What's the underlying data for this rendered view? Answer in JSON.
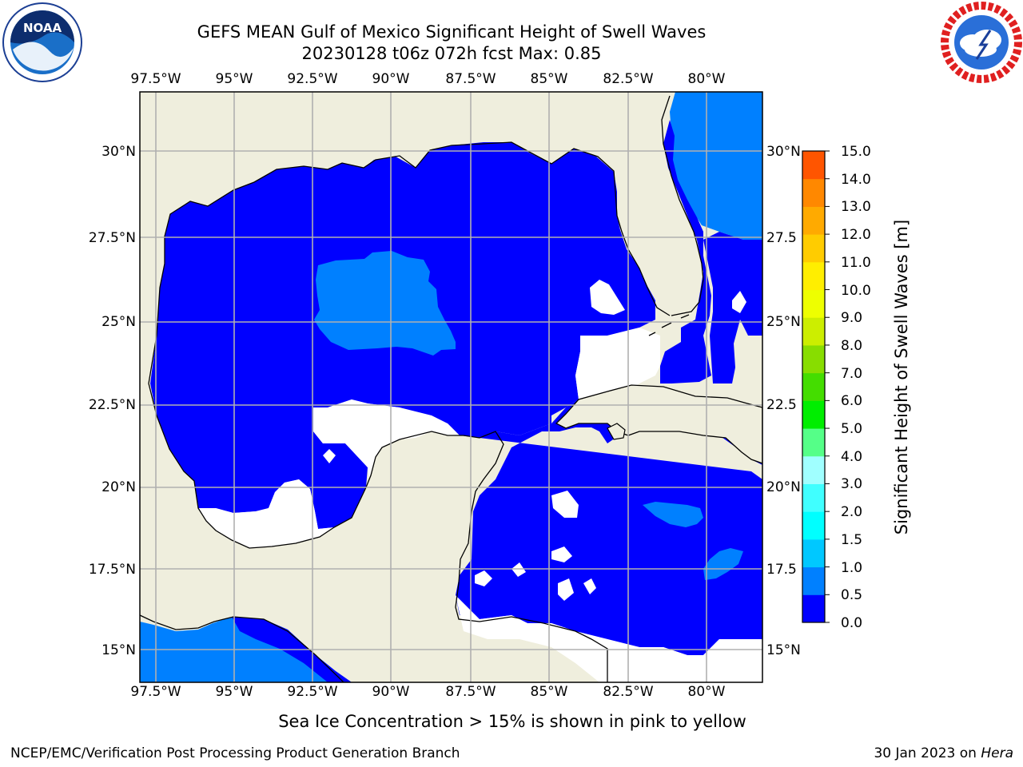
{
  "title": {
    "line1": "GEFS MEAN Gulf of Mexico Significant Height of Swell Waves",
    "line2": "20230128 t06z 072h fcst   Max: 0.85"
  },
  "logos": {
    "left": {
      "icon": "noaa-logo-icon",
      "text": "NOAA",
      "ring_text": "NATIONAL OCEANIC AND ATMOSPHERIC ADMINISTRATION · U.S. DEPARTMENT OF COMMERCE"
    },
    "right": {
      "icon": "nws-logo-icon",
      "ring_text": "NATIONAL WEATHER SERVICE"
    }
  },
  "map": {
    "lon_labels": [
      "97.5°W",
      "95°W",
      "92.5°W",
      "90°W",
      "87.5°W",
      "85°W",
      "82.5°W",
      "80°W"
    ],
    "lat_labels_left": [
      "30°N",
      "27.5°N",
      "25°N",
      "22.5°N",
      "20°N",
      "17.5°N",
      "15°N"
    ],
    "lat_labels_right": [
      "30°N",
      "27.5",
      "25°N",
      "22.5",
      "20°N",
      "17.5",
      "15°N"
    ],
    "colors": {
      "land": "#efeedd",
      "no_data": "#ffffff",
      "grid": "#b0b0b0",
      "coast": "#000000"
    }
  },
  "colorbar": {
    "title": "Significant Height of Swell Waves [m]",
    "labels": [
      "0.0",
      "0.5",
      "1.0",
      "1.5",
      "2.0",
      "3.0",
      "4.0",
      "5.0",
      "6.0",
      "7.0",
      "8.0",
      "9.0",
      "10.0",
      "11.0",
      "12.0",
      "13.0",
      "14.0",
      "15.0"
    ],
    "colors": [
      "#0000ff",
      "#0080ff",
      "#00c8ff",
      "#00ffff",
      "#40ffff",
      "#a0ffff",
      "#55ff88",
      "#00ee00",
      "#44dd00",
      "#88dd00",
      "#ccee00",
      "#eeff00",
      "#ffee00",
      "#ffcc00",
      "#ffaa00",
      "#ff8800",
      "#ff5500",
      "#ff2200",
      "#ff0000"
    ]
  },
  "footer": {
    "note": "Sea Ice Concentration > 15% is shown in pink to yellow",
    "credit": "NCEP/EMC/Verification Post Processing Product Generation Branch",
    "date": "30 Jan 2023 on",
    "host": "Hera"
  }
}
